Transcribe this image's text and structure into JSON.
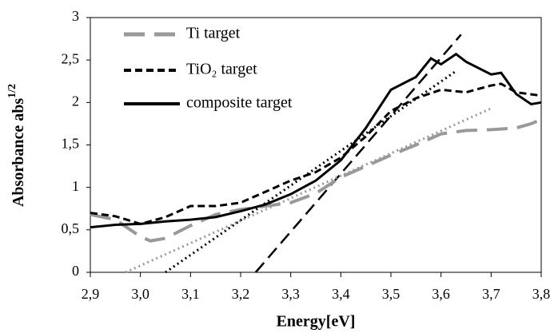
{
  "chart_data": {
    "type": "line",
    "xlabel": "Energy[eV]",
    "ylabel": "Absorbance abs",
    "ylabel_sup": "1/2",
    "xlim": [
      2.9,
      3.8
    ],
    "ylim": [
      0,
      3
    ],
    "xticks": [
      {
        "value": 2.9,
        "label": "2,9"
      },
      {
        "value": 3.0,
        "label": "3,0"
      },
      {
        "value": 3.1,
        "label": "3,1"
      },
      {
        "value": 3.2,
        "label": "3,2"
      },
      {
        "value": 3.3,
        "label": "3,3"
      },
      {
        "value": 3.4,
        "label": "3,4"
      },
      {
        "value": 3.5,
        "label": "3,5"
      },
      {
        "value": 3.6,
        "label": "3,6"
      },
      {
        "value": 3.7,
        "label": "3,7"
      },
      {
        "value": 3.8,
        "label": "3,8"
      }
    ],
    "yticks": [
      0,
      {
        "value": 0.5,
        "label": "0,5"
      },
      1,
      {
        "value": 1.5,
        "label": "1,5"
      },
      2,
      {
        "value": 2.5,
        "label": "2,5"
      },
      3
    ],
    "series": [
      {
        "name": "Ti target",
        "color": "#999999",
        "dash": "long",
        "x": [
          2.9,
          2.95,
          3.0,
          3.02,
          3.05,
          3.1,
          3.15,
          3.2,
          3.25,
          3.3,
          3.35,
          3.4,
          3.45,
          3.5,
          3.55,
          3.6,
          3.65,
          3.7,
          3.75,
          3.78,
          3.8
        ],
        "values": [
          0.68,
          0.62,
          0.42,
          0.37,
          0.4,
          0.55,
          0.68,
          0.74,
          0.78,
          0.82,
          0.93,
          1.12,
          1.25,
          1.38,
          1.5,
          1.63,
          1.67,
          1.68,
          1.7,
          1.75,
          1.8
        ]
      },
      {
        "name": "TiO₂ target",
        "color": "#000000",
        "dash": "short",
        "x": [
          2.9,
          2.95,
          3.0,
          3.05,
          3.1,
          3.15,
          3.2,
          3.25,
          3.3,
          3.35,
          3.4,
          3.45,
          3.5,
          3.55,
          3.6,
          3.65,
          3.7,
          3.72,
          3.75,
          3.8
        ],
        "values": [
          0.7,
          0.66,
          0.57,
          0.65,
          0.78,
          0.78,
          0.82,
          0.95,
          1.08,
          1.18,
          1.35,
          1.6,
          1.9,
          2.05,
          2.15,
          2.12,
          2.2,
          2.22,
          2.12,
          2.08
        ]
      },
      {
        "name": "composite target",
        "color": "#000000",
        "dash": "solid",
        "x": [
          2.9,
          2.95,
          3.0,
          3.05,
          3.1,
          3.15,
          3.2,
          3.25,
          3.3,
          3.35,
          3.4,
          3.45,
          3.5,
          3.55,
          3.58,
          3.6,
          3.63,
          3.65,
          3.7,
          3.72,
          3.75,
          3.78,
          3.8
        ],
        "values": [
          0.53,
          0.56,
          0.57,
          0.6,
          0.62,
          0.65,
          0.72,
          0.8,
          0.92,
          1.08,
          1.32,
          1.7,
          2.15,
          2.3,
          2.52,
          2.45,
          2.57,
          2.48,
          2.33,
          2.35,
          2.1,
          1.98,
          2.0
        ]
      }
    ],
    "fits": [
      {
        "color": "#000000",
        "dash": "fitlong",
        "x": [
          3.23,
          3.64
        ],
        "values": [
          0,
          2.8
        ]
      },
      {
        "color": "#000000",
        "dash": "dot",
        "x": [
          3.05,
          3.63
        ],
        "values": [
          0,
          2.37
        ]
      },
      {
        "color": "#999999",
        "dash": "dot",
        "x": [
          2.97,
          3.7
        ],
        "values": [
          0,
          1.93
        ]
      }
    ]
  }
}
